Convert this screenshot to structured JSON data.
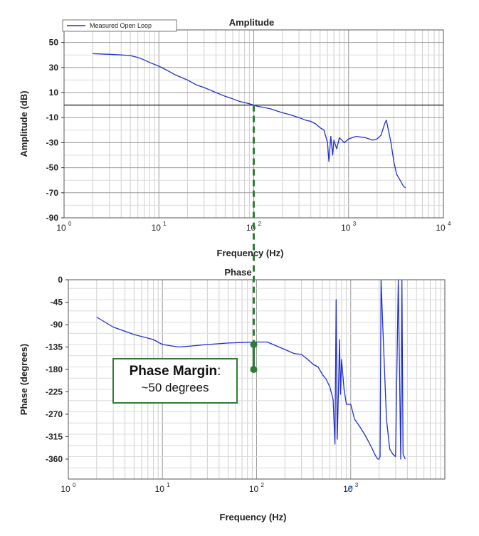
{
  "chart_data": [
    {
      "type": "line",
      "title": "Amplitude",
      "xlabel": "Frequency (Hz)",
      "ylabel": "Amplitude (dB)",
      "xscale": "log",
      "xlim": [
        1,
        10000
      ],
      "ylim": [
        -90,
        60
      ],
      "yticks": [
        50,
        30,
        10,
        -10,
        -30,
        -50,
        -70,
        -90
      ],
      "xticks": [
        1,
        10,
        100,
        1000,
        10000
      ],
      "xtick_labels": [
        {
          "base": "10",
          "exp": "0"
        },
        {
          "base": "10",
          "exp": "1"
        },
        {
          "base": "10",
          "exp": "2"
        },
        {
          "base": "10",
          "exp": "3"
        },
        {
          "base": "10",
          "exp": "4"
        }
      ],
      "legend": {
        "entries": [
          "Measured Open Loop"
        ],
        "position": "top-left"
      },
      "reference_line_y": 0,
      "series": [
        {
          "name": "Measured Open Loop",
          "color": "#1f2fd0",
          "x": [
            2,
            3,
            4,
            5,
            6,
            7,
            8,
            10,
            12,
            15,
            20,
            25,
            30,
            40,
            50,
            60,
            70,
            80,
            90,
            100,
            110,
            130,
            150,
            180,
            200,
            250,
            300,
            350,
            400,
            450,
            500,
            550,
            600,
            620,
            650,
            680,
            700,
            750,
            800,
            900,
            1000,
            1200,
            1500,
            1800,
            2000,
            2200,
            2400,
            2500,
            2600,
            2800,
            3000,
            3200,
            3500,
            3800,
            4000
          ],
          "y": [
            41,
            40.5,
            40,
            39.5,
            38,
            36,
            34,
            31,
            28,
            24,
            20,
            16,
            14,
            10,
            7,
            5,
            3,
            2,
            1,
            0,
            -1,
            -2,
            -3,
            -5,
            -6,
            -8,
            -10,
            -12,
            -13,
            -15,
            -18,
            -20,
            -30,
            -45,
            -25,
            -40,
            -28,
            -35,
            -26,
            -30,
            -27,
            -25,
            -26,
            -28,
            -27,
            -24,
            -15,
            -12,
            -18,
            -30,
            -45,
            -55,
            -60,
            -65,
            -66
          ]
        }
      ]
    },
    {
      "type": "line",
      "title": "Phase",
      "xlabel": "Frequency (Hz)",
      "ylabel": "Phase (degrees)",
      "xscale": "log",
      "xlim": [
        1,
        10000
      ],
      "ylim": [
        -400,
        0
      ],
      "yticks": [
        0,
        -45,
        -90,
        -135,
        -180,
        -225,
        -270,
        -315,
        -360
      ],
      "xticks": [
        1,
        10,
        100,
        1000
      ],
      "xtick_labels": [
        {
          "base": "10",
          "exp": "0"
        },
        {
          "base": "10",
          "exp": "1"
        },
        {
          "base": "10",
          "exp": "2"
        },
        {
          "base": "10",
          "exp": "3"
        }
      ],
      "series": [
        {
          "name": "Measured Open Loop",
          "color": "#1f2fd0",
          "x": [
            2,
            3,
            5,
            8,
            10,
            15,
            20,
            30,
            50,
            70,
            100,
            130,
            150,
            200,
            250,
            300,
            350,
            400,
            450,
            500,
            550,
            600,
            650,
            680,
            700,
            720,
            740,
            760,
            780,
            800,
            850,
            900,
            950,
            1000,
            1100,
            1200,
            1300,
            1400,
            1500,
            1600,
            1700,
            1800,
            1900,
            1950,
            2000,
            2050,
            2100,
            2200,
            2400,
            2600,
            2800,
            3000,
            3200,
            3400,
            3500,
            3600,
            3700,
            3800
          ],
          "y": [
            -75,
            -95,
            -110,
            -120,
            -130,
            -135,
            -133,
            -130,
            -127,
            -126,
            -125,
            -125,
            -130,
            -140,
            -148,
            -150,
            -160,
            -170,
            -175,
            -190,
            -200,
            -215,
            -240,
            -330,
            -40,
            -320,
            -225,
            -120,
            -230,
            -160,
            -220,
            -250,
            -250,
            -250,
            -280,
            -290,
            -300,
            -310,
            -320,
            -330,
            -340,
            -350,
            -358,
            -360,
            -360,
            -355,
            0,
            -100,
            -280,
            -340,
            -350,
            -355,
            0,
            -360,
            0,
            -350,
            -355,
            -360
          ]
        }
      ]
    }
  ],
  "annotation": {
    "line1": "Phase Margin",
    "colon": ":",
    "line2": "~50 degrees",
    "color": "#2e7d32",
    "crossover_x": 100,
    "marker_phase_top": -130,
    "marker_phase_bottom": -180
  },
  "stray_glyph": "↗"
}
